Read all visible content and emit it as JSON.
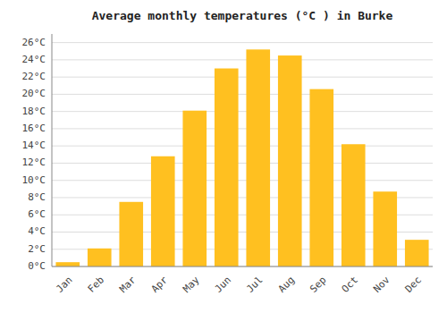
{
  "chart_data": {
    "type": "bar",
    "title": "Average monthly temperatures (°C ) in Burke",
    "categories": [
      "Jan",
      "Feb",
      "Mar",
      "Apr",
      "May",
      "Jun",
      "Jul",
      "Aug",
      "Sep",
      "Oct",
      "Nov",
      "Dec"
    ],
    "values": [
      0.5,
      2.1,
      7.5,
      12.8,
      18.1,
      23.0,
      25.2,
      24.5,
      20.6,
      14.2,
      8.7,
      3.1
    ],
    "color": "#FFC020",
    "ylim": [
      0,
      27
    ],
    "yticks": [
      {
        "value": 0,
        "label": "0°C"
      },
      {
        "value": 2,
        "label": "2°C"
      },
      {
        "value": 4,
        "label": "4°C"
      },
      {
        "value": 6,
        "label": "6°C"
      },
      {
        "value": 8,
        "label": "8°C"
      },
      {
        "value": 10,
        "label": "10°C"
      },
      {
        "value": 12,
        "label": "12°C"
      },
      {
        "value": 14,
        "label": "14°C"
      },
      {
        "value": 16,
        "label": "16°C"
      },
      {
        "value": 18,
        "label": "18°C"
      },
      {
        "value": 20,
        "label": "20°C"
      },
      {
        "value": 22,
        "label": "22°C"
      },
      {
        "value": 24,
        "label": "24°C"
      },
      {
        "value": 26,
        "label": "26°C"
      }
    ],
    "grid": true
  }
}
